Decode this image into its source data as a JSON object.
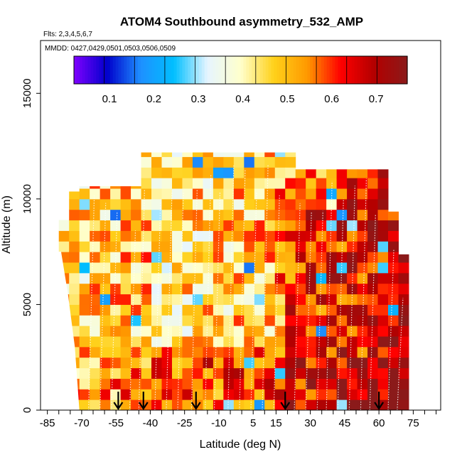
{
  "chart_data": {
    "type": "heatmap",
    "title": "ATOM4 Southbound asymmetry_532_AMP",
    "flights_label": "Flts: 2,3,4,5,6,7",
    "dates_label": "MMDD: 0427,0429,0501,0503,0506,0509",
    "xlabel": "Latitude (deg N)",
    "ylabel": "Altitude (m)",
    "xlim": [
      -88,
      87
    ],
    "ylim": [
      0,
      17500
    ],
    "x_ticks": [
      -85,
      -70,
      -55,
      -40,
      -25,
      -10,
      5,
      15,
      30,
      45,
      60,
      75
    ],
    "y_ticks": [
      0,
      5000,
      10000,
      15000
    ],
    "colorbar": {
      "range": [
        0.02,
        0.77
      ],
      "ticks": [
        0.1,
        0.2,
        0.3,
        0.4,
        0.5,
        0.6,
        0.7
      ],
      "colors": [
        "#7f00ff",
        "#0000cc",
        "#1e90ff",
        "#00bfff",
        "#e6f5ff",
        "#ffffcc",
        "#ffd11a",
        "#ff9900",
        "#ff0000",
        "#b30000",
        "#8b1a1a"
      ]
    },
    "profile_latitudes": [
      -54,
      -43,
      -20,
      19,
      60
    ],
    "grid": false,
    "legend": "colorbar-top"
  }
}
